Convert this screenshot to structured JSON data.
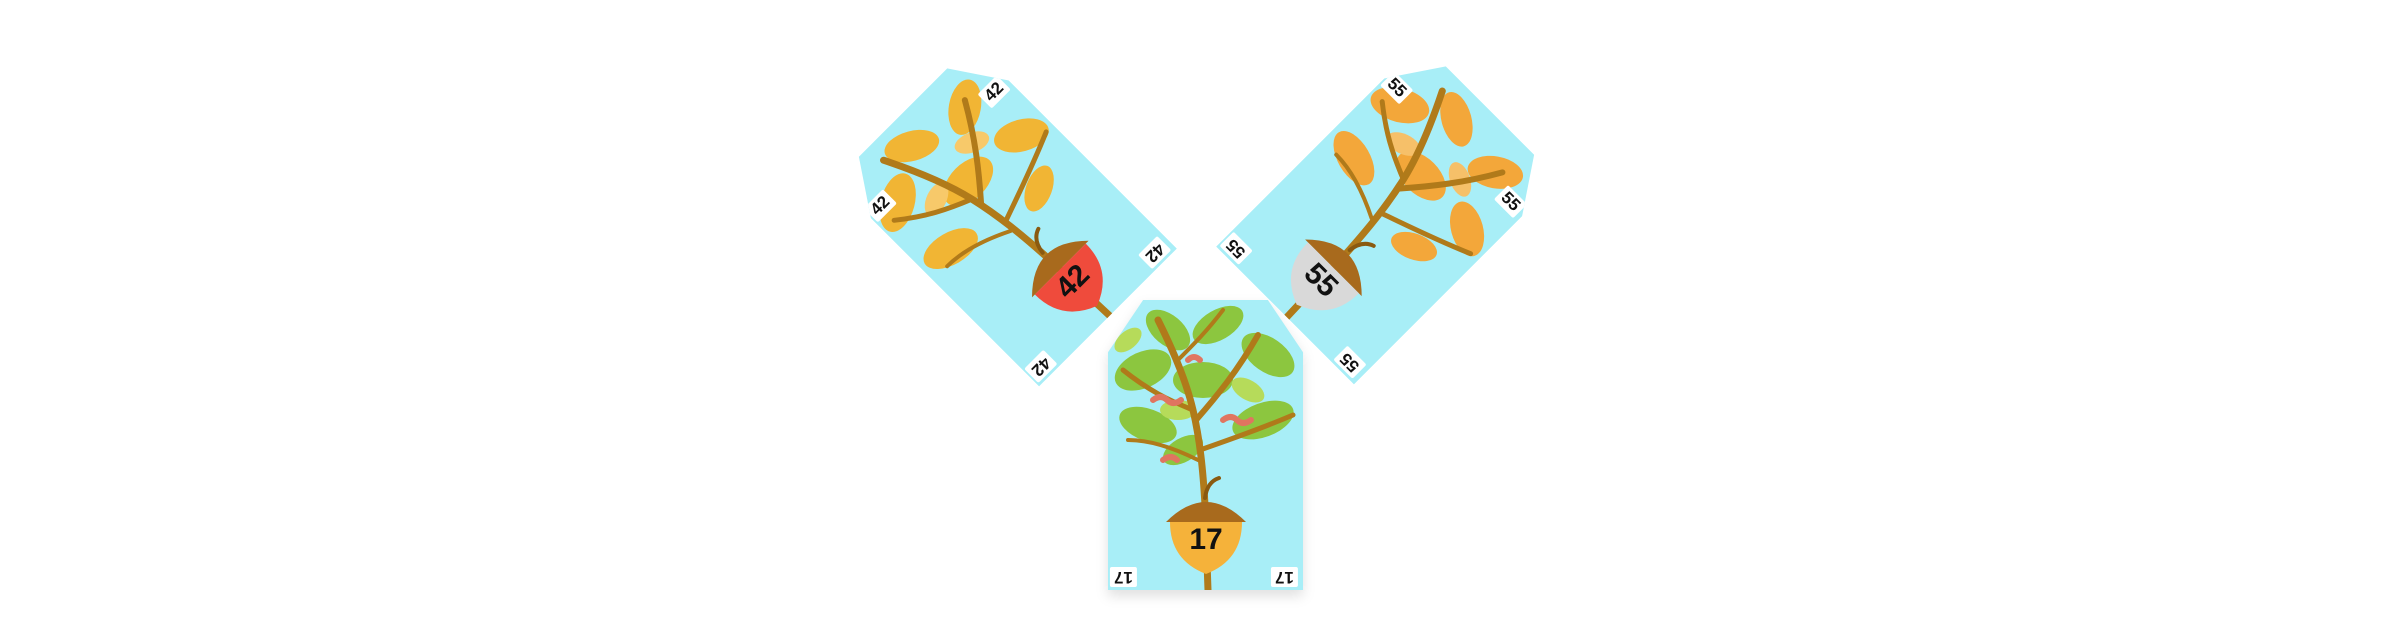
{
  "cards": [
    {
      "id": "card-17",
      "value": "17",
      "corner_label": "17",
      "acorn_color": "#f5b23a",
      "leaf_color": "#8cc63f"
    },
    {
      "id": "card-42",
      "value": "42",
      "corner_label": "42",
      "acorn_color": "#ef4b3c",
      "leaf_color": "#f1b534"
    },
    {
      "id": "card-55",
      "value": "55",
      "corner_label": "55",
      "acorn_color": "#d9d9d9",
      "leaf_color": "#f3a73a"
    }
  ]
}
